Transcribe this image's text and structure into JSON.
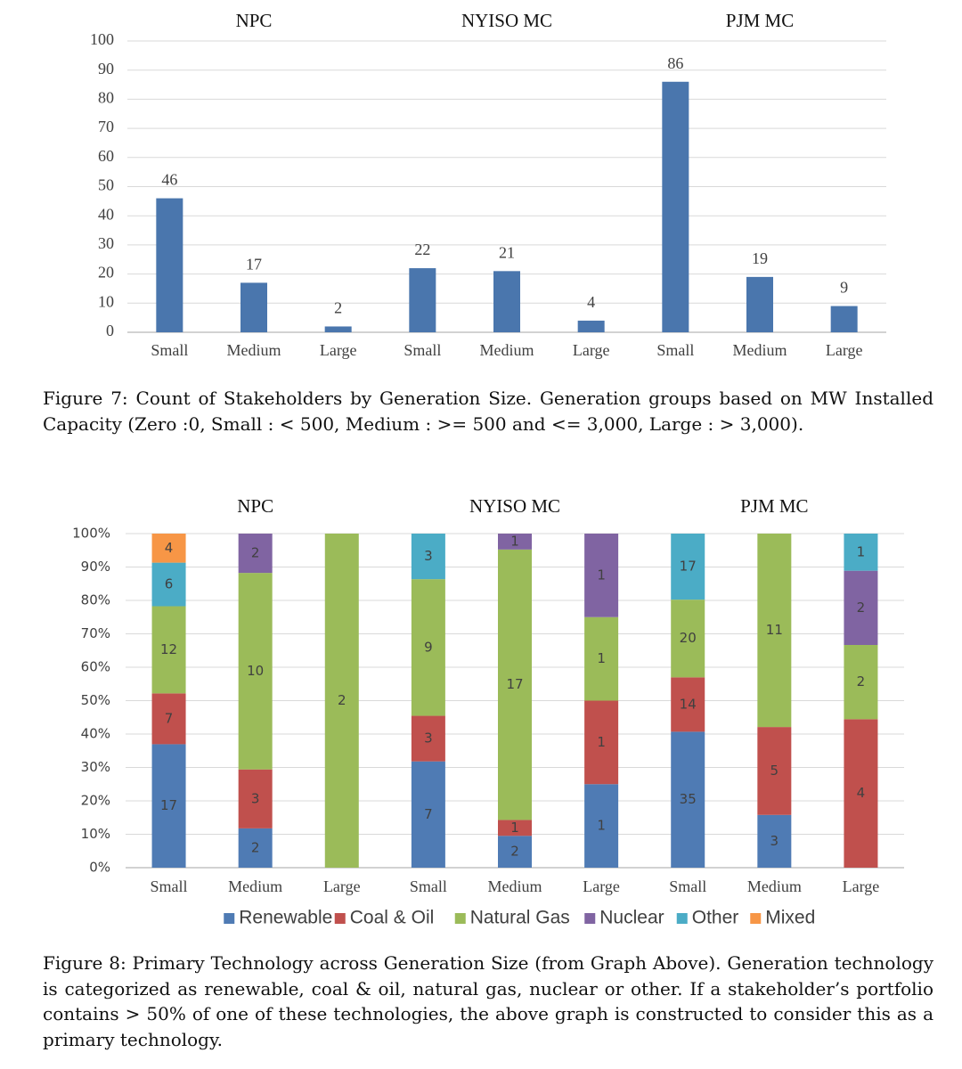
{
  "chart_data": [
    {
      "type": "bar",
      "groups": [
        "NPC",
        "NYISO MC",
        "PJM MC"
      ],
      "categories": [
        "Small",
        "Medium",
        "Large",
        "Small",
        "Medium",
        "Large",
        "Small",
        "Medium",
        "Large"
      ],
      "values": [
        46,
        17,
        2,
        22,
        21,
        4,
        86,
        19,
        9
      ],
      "color": "#4a76ad",
      "ylim": [
        0,
        100
      ],
      "yticks": [
        0,
        10,
        20,
        30,
        40,
        50,
        60,
        70,
        80,
        90,
        100
      ],
      "grid": true
    },
    {
      "type": "stacked_percent_bar",
      "groups": [
        "NPC",
        "NYISO MC",
        "PJM MC"
      ],
      "categories": [
        "Small",
        "Medium",
        "Large",
        "Small",
        "Medium",
        "Large",
        "Small",
        "Medium",
        "Large"
      ],
      "series": [
        {
          "name": "Renewable",
          "color": "#4f7bb4",
          "values": [
            17,
            2,
            null,
            7,
            2,
            1,
            35,
            3,
            null
          ]
        },
        {
          "name": "Coal & Oil",
          "color": "#c0504d",
          "values": [
            7,
            3,
            null,
            3,
            1,
            1,
            14,
            5,
            4
          ]
        },
        {
          "name": "Natural Gas",
          "color": "#9bbb59",
          "values": [
            12,
            10,
            2,
            9,
            17,
            1,
            20,
            11,
            2
          ]
        },
        {
          "name": "Nuclear",
          "color": "#8064a2",
          "values": [
            null,
            2,
            null,
            null,
            1,
            1,
            null,
            null,
            2
          ]
        },
        {
          "name": "Other",
          "color": "#4bacc6",
          "values": [
            6,
            null,
            null,
            3,
            null,
            null,
            17,
            null,
            1
          ]
        },
        {
          "name": "Mixed",
          "color": "#f79646",
          "values": [
            4,
            null,
            null,
            null,
            null,
            null,
            null,
            null,
            null
          ]
        }
      ],
      "ylim": [
        0,
        100
      ],
      "yticks": [
        {
          "value": 0,
          "label": "0%"
        },
        {
          "value": 10,
          "label": "10%"
        },
        {
          "value": 20,
          "label": "20%"
        },
        {
          "value": 30,
          "label": "30%"
        },
        {
          "value": 40,
          "label": "40%"
        },
        {
          "value": 50,
          "label": "50%"
        },
        {
          "value": 60,
          "label": "60%"
        },
        {
          "value": 70,
          "label": "70%"
        },
        {
          "value": 80,
          "label": "80%"
        },
        {
          "value": 90,
          "label": "90%"
        },
        {
          "value": 100,
          "label": "100%"
        }
      ],
      "grid": true,
      "legend": "bottom"
    }
  ],
  "captions": [
    "Figure 7: Count of Stakeholders by Generation Size. Generation groups based on MW Installed Capacity (Zero :0, Small : < 500, Medium : >= 500 and <= 3,000, Large : > 3,000).",
    "Figure 8: Primary Technology across Generation Size (from Graph Above). Generation technology is categorized as renewable, coal & oil, natural gas, nuclear or other. If a stakeholder’s portfolio contains > 50% of one of these technologies, the above graph is constructed to consider this as a primary technology."
  ]
}
